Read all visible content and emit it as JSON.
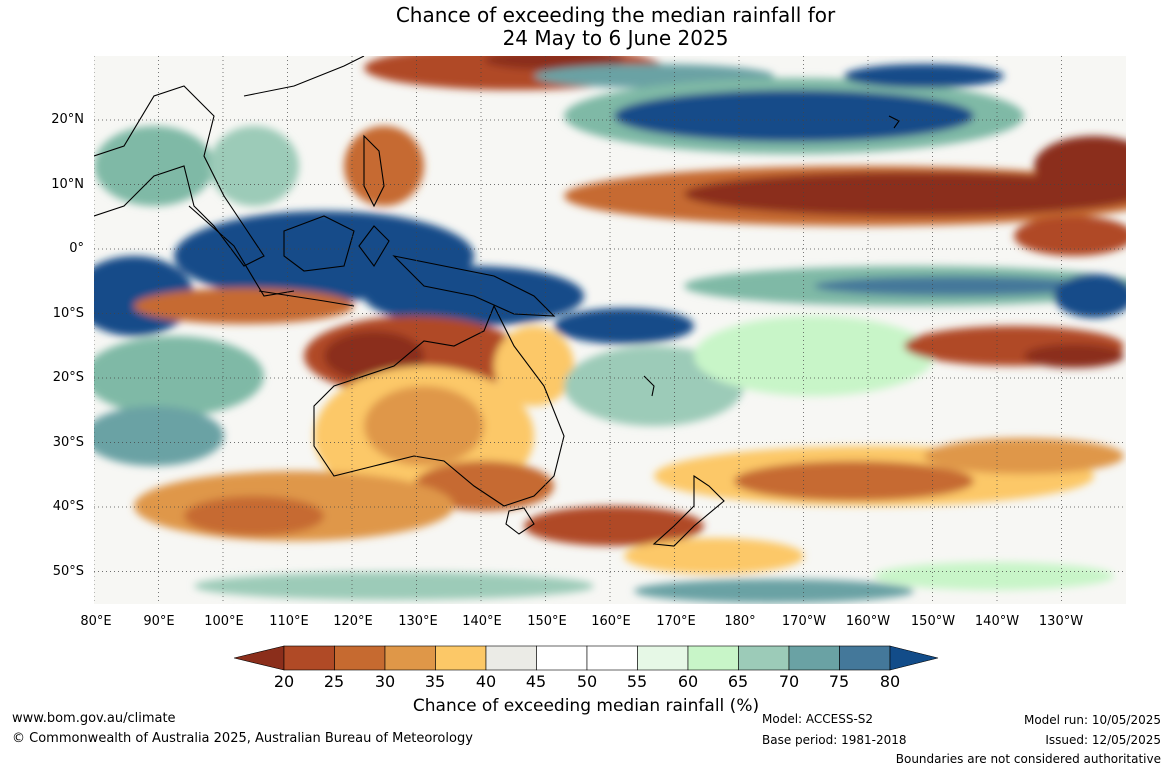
{
  "title": {
    "line1": "Chance of exceeding the median rainfall for",
    "line2": "24 May to 6 June 2025"
  },
  "map": {
    "lat_labels": [
      "20°N",
      "10°N",
      "0°",
      "10°S",
      "20°S",
      "30°S",
      "40°S",
      "50°S"
    ],
    "lon_labels": [
      "80°E",
      "90°E",
      "100°E",
      "110°E",
      "120°E",
      "130°E",
      "140°E",
      "150°E",
      "160°E",
      "170°E",
      "180°",
      "170°W",
      "160°W",
      "150°W",
      "140°W",
      "130°W"
    ],
    "colors": {
      "dry_strong": "#8b2e1b",
      "dry": "#c5662f",
      "dry_mild": "#f4c060",
      "neutral": "#ffffff",
      "wet_mild": "#c8f5c8",
      "wet": "#7fb9a6",
      "wet_strong": "#124c89",
      "coast": "#000000",
      "grid": "#444444"
    }
  },
  "colorbar": {
    "ticks": [
      "20",
      "25",
      "30",
      "35",
      "40",
      "45",
      "50",
      "55",
      "60",
      "65",
      "70",
      "75",
      "80"
    ],
    "colors": [
      "#8b2e1b",
      "#b04a26",
      "#c66a30",
      "#df9748",
      "#fcc867",
      "#ebebe6",
      "#ffffff",
      "#ffffff",
      "#e6f8e6",
      "#c8f5c8",
      "#9ccbb8",
      "#6aa2a4",
      "#44789a",
      "#124c89"
    ],
    "label": "Chance of exceeding median rainfall (%)"
  },
  "footer": {
    "website": "www.bom.gov.au/climate",
    "copyright": "© Commonwealth of Australia 2025, Australian Bureau of Meteorology",
    "model": "Model: ACCESS-S2",
    "base_period": "Base period: 1981-2018",
    "model_run": "Model run: 10/05/2025",
    "issued": "Issued: 12/05/2025",
    "disclaimer": "Boundaries are not considered authoritative"
  }
}
